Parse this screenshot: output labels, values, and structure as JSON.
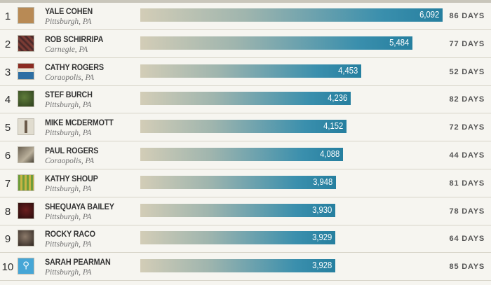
{
  "chart_data": {
    "type": "bar",
    "orientation": "horizontal",
    "value_max": 6092,
    "rows": [
      {
        "rank": "1",
        "name": "YALE COHEN",
        "location": "Pittsburgh, PA",
        "value": 6092,
        "value_label": "6,092",
        "days": "86 DAYS"
      },
      {
        "rank": "2",
        "name": "ROB SCHIRRIPA",
        "location": "Carnegie, PA",
        "value": 5484,
        "value_label": "5,484",
        "days": "77 DAYS"
      },
      {
        "rank": "3",
        "name": "CATHY ROGERS",
        "location": "Coraopolis, PA",
        "value": 4453,
        "value_label": "4,453",
        "days": "52 DAYS"
      },
      {
        "rank": "4",
        "name": "STEF BURCH",
        "location": "Pittsburgh, PA",
        "value": 4236,
        "value_label": "4,236",
        "days": "82 DAYS"
      },
      {
        "rank": "5",
        "name": "MIKE MCDERMOTT",
        "location": "Pittsburgh, PA",
        "value": 4152,
        "value_label": "4,152",
        "days": "72 DAYS"
      },
      {
        "rank": "6",
        "name": "PAUL ROGERS",
        "location": "Coraopolis, PA",
        "value": 4088,
        "value_label": "4,088",
        "days": "44 DAYS"
      },
      {
        "rank": "7",
        "name": "KATHY SHOUP",
        "location": "Pittsburgh, PA",
        "value": 3948,
        "value_label": "3,948",
        "days": "81 DAYS"
      },
      {
        "rank": "8",
        "name": "SHEQUAYA BAILEY",
        "location": "Pittsburgh, PA",
        "value": 3930,
        "value_label": "3,930",
        "days": "78 DAYS"
      },
      {
        "rank": "9",
        "name": "ROCKY RACO",
        "location": "Pittsburgh, PA",
        "value": 3929,
        "value_label": "3,929",
        "days": "64 DAYS"
      },
      {
        "rank": "10",
        "name": "SARAH PEARMAN",
        "location": "Pittsburgh, PA",
        "value": 3928,
        "value_label": "3,928",
        "days": "85 DAYS"
      }
    ]
  },
  "colors": {
    "bar_start": "#d3cdb7",
    "bar_end": "#267f9f",
    "value_text": "#ffffff",
    "background": "#f6f5f0"
  },
  "avatars": [
    "photo",
    "photo",
    "photo",
    "photo",
    "photo",
    "photo",
    "photo",
    "photo",
    "photo",
    "bicycle-icon"
  ]
}
